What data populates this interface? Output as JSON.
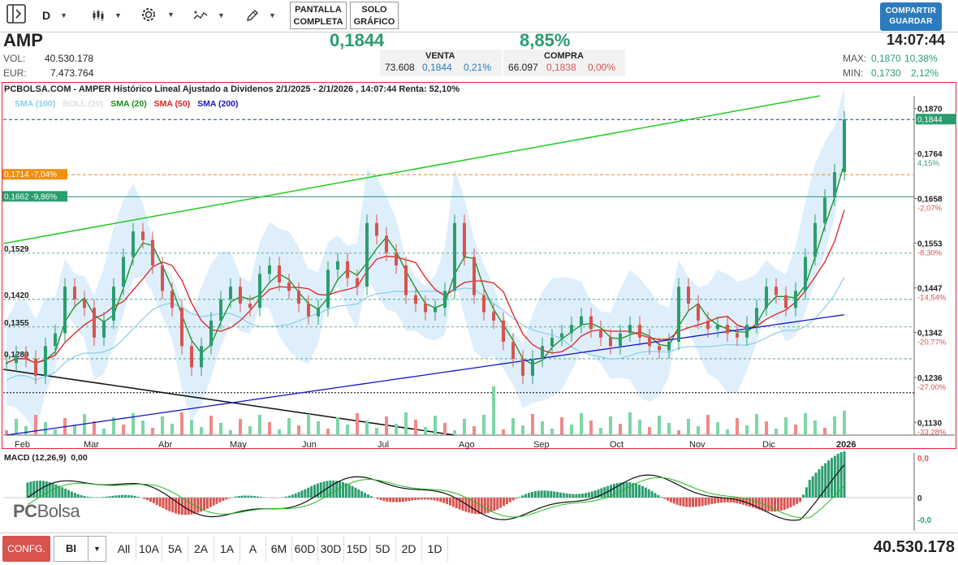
{
  "toolbar": {
    "interval": "D",
    "fullscreen_label": [
      "PANTALLA",
      "COMPLETA"
    ],
    "chart_only_label": [
      "SOLO",
      "GRÁFICO"
    ],
    "share_label": [
      "COMPARTIR",
      "GUARDAR"
    ],
    "icons": [
      "sidebar-toggle-icon",
      "candles-icon",
      "gear-icon",
      "indicators-icon",
      "pencil-icon"
    ]
  },
  "quote": {
    "ticker": "AMP",
    "price": "0,1844",
    "change_pct": "8,85%",
    "time": "14:07:44",
    "vol_label": "VOL:",
    "vol_value": "40.530.178",
    "eur_label": "EUR:",
    "eur_value": "7.473.764",
    "venta": {
      "title": "VENTA",
      "qty": "73.608",
      "price": "0,1844",
      "pct": "0,21%"
    },
    "compra": {
      "title": "COMPRA",
      "qty": "66.097",
      "price": "0,1838",
      "pct": "0,00%"
    },
    "max_label": "MAX:",
    "max_price": "0,1870",
    "max_pct": "10,38%",
    "min_label": "MIN:",
    "min_price": "0,1730",
    "min_pct": "2,12%"
  },
  "chart_title": "PCBOLSA.COM - AMPER Histórico Lineal Ajustado a Dividenos 2/1/2025 - 2/1/2026 , 14:07:44 Renta: 52,10%",
  "legend": [
    {
      "label": "SMA (100)",
      "color": "#87ceeb"
    },
    {
      "label": "BOLL (20)",
      "color": "#dddddd"
    },
    {
      "label": "SMA (20)",
      "color": "#1a8f1a"
    },
    {
      "label": "SMA (50)",
      "color": "#e02020"
    },
    {
      "label": "SMA (200)",
      "color": "#1515c8"
    }
  ],
  "chart_data": {
    "type": "candlestick",
    "ylim": [
      0.11,
      0.19
    ],
    "y_ticks": [
      "0,1870",
      "0,1764",
      "0,1658",
      "0,1553",
      "0,1447",
      "0,1342",
      "0,1236",
      "0,1130"
    ],
    "pct_ticks": [
      "10,38%",
      "4,15%",
      "-2,07%",
      "-8,30%",
      "-14,54%",
      "-20,77%",
      "-27,00%",
      "-33,28%"
    ],
    "x_labels": [
      "Feb",
      "Mar",
      "Abr",
      "May",
      "Jun",
      "Jul",
      "Ago",
      "Sep",
      "Oct",
      "Nov",
      "Dic",
      "2026"
    ],
    "close_path": [
      0.127,
      0.129,
      0.128,
      0.124,
      0.131,
      0.134,
      0.145,
      0.142,
      0.14,
      0.133,
      0.137,
      0.145,
      0.152,
      0.158,
      0.156,
      0.15,
      0.144,
      0.14,
      0.131,
      0.126,
      0.131,
      0.137,
      0.142,
      0.145,
      0.141,
      0.14,
      0.148,
      0.15,
      0.146,
      0.144,
      0.141,
      0.138,
      0.14,
      0.149,
      0.151,
      0.147,
      0.145,
      0.16,
      0.157,
      0.153,
      0.15,
      0.143,
      0.141,
      0.139,
      0.14,
      0.144,
      0.16,
      0.152,
      0.143,
      0.139,
      0.137,
      0.132,
      0.128,
      0.124,
      0.128,
      0.131,
      0.133,
      0.134,
      0.136,
      0.138,
      0.135,
      0.133,
      0.131,
      0.134,
      0.136,
      0.133,
      0.131,
      0.13,
      0.132,
      0.145,
      0.141,
      0.137,
      0.135,
      0.136,
      0.134,
      0.133,
      0.136,
      0.14,
      0.145,
      0.143,
      0.14,
      0.144,
      0.152,
      0.16,
      0.166,
      0.172,
      0.1844
    ],
    "price_lines": [
      {
        "label": "0,1844",
        "value": 0.1844,
        "style": "dashed-blue"
      },
      {
        "label": "0,1714 -7,04%",
        "value": 0.1714,
        "style": "dashed-orange"
      },
      {
        "label": "0,1662 -9,86%",
        "value": 0.1662,
        "style": "solid-teal"
      }
    ],
    "left_levels": [
      "0,1529",
      "0,1420",
      "0,1355",
      "0,1280"
    ]
  },
  "macd": {
    "title": "MACD (12,26,9)",
    "value": "0,00",
    "ticks": [
      "0,0",
      "0",
      "-0,0"
    ]
  },
  "logo": {
    "pc": "PC",
    "bolsa": "Bolsa"
  },
  "bottom": {
    "config_label": "CONFG.",
    "select_value": "BI",
    "ranges": [
      "All",
      "10A",
      "5A",
      "2A",
      "1A",
      "A",
      "6M",
      "60D",
      "30D",
      "15D",
      "5D",
      "2D",
      "1D"
    ],
    "volume_total": "40.530.178"
  }
}
